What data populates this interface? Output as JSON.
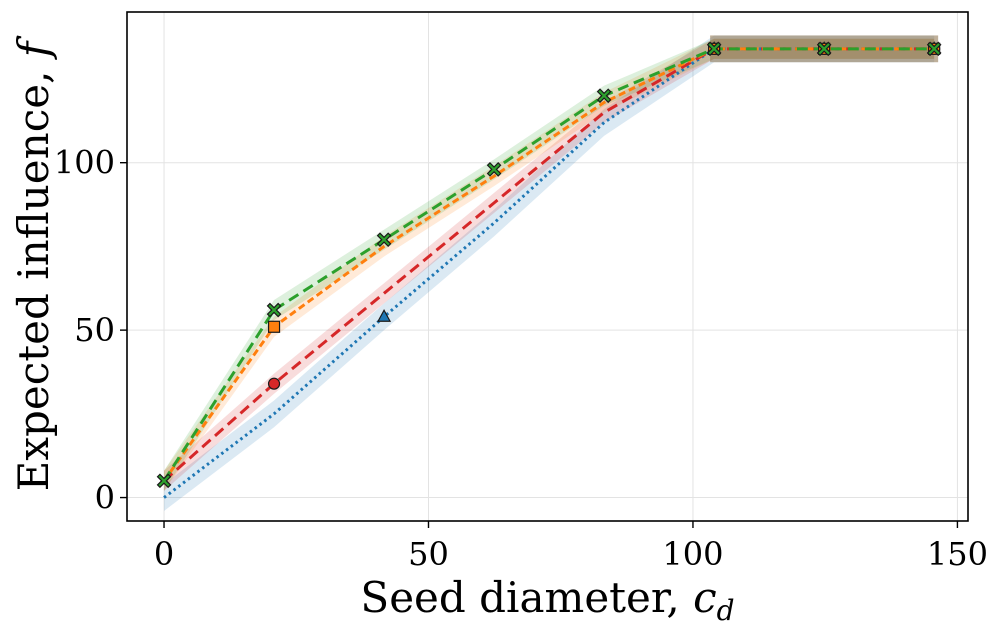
{
  "chart_data": {
    "type": "line",
    "title": "",
    "xlabel": "Seed diameter, ",
    "xlabel_var": "c",
    "xlabel_sub": "d",
    "ylabel": "Expected influence, ",
    "ylabel_var": "f",
    "xlim": [
      -7,
      152
    ],
    "ylim": [
      -7,
      145
    ],
    "xticks": [
      0,
      50,
      100,
      150
    ],
    "yticks": [
      0,
      50,
      100
    ],
    "grid": true,
    "legend": "none",
    "series": [
      {
        "name": "blue-dotted",
        "color": "#1f77b4",
        "dash": "dotted",
        "x": [
          0,
          20.8,
          41.6,
          62.4,
          83.2,
          104,
          124.8,
          145.6
        ],
        "y": [
          0,
          25,
          54,
          82,
          112,
          134,
          134,
          134
        ],
        "band": 4,
        "marker": "triangle",
        "marker_indices": [
          2,
          5,
          6,
          7
        ]
      },
      {
        "name": "red-dashed",
        "color": "#d62728",
        "dash": "dashed",
        "x": [
          0,
          20.8,
          41.6,
          62.4,
          83.2,
          104,
          124.8,
          145.6
        ],
        "y": [
          5,
          34,
          61,
          88,
          115,
          134,
          134,
          134
        ],
        "band": 3,
        "marker": "circle",
        "marker_indices": [
          1,
          5,
          6,
          7
        ]
      },
      {
        "name": "orange-dashed",
        "color": "#ff7f0e",
        "dash": "dotdash",
        "x": [
          0,
          20.8,
          41.6,
          62.4,
          83.2,
          104,
          124.8,
          145.6
        ],
        "y": [
          5,
          51,
          75,
          96,
          118,
          134,
          134,
          134
        ],
        "band": 3,
        "marker": "square",
        "marker_indices": [
          1,
          5,
          6,
          7
        ]
      },
      {
        "name": "green-dashed",
        "color": "#2ca02c",
        "dash": "dashed",
        "x": [
          0,
          20.8,
          41.6,
          62.4,
          83.2,
          104,
          124.8,
          145.6
        ],
        "y": [
          5,
          56,
          77,
          98,
          120,
          134,
          134,
          134
        ],
        "band": 3,
        "marker": "x",
        "marker_indices": [
          0,
          1,
          2,
          3,
          4,
          5,
          6,
          7
        ]
      }
    ],
    "plateau_band_color": "#8b6f47"
  }
}
